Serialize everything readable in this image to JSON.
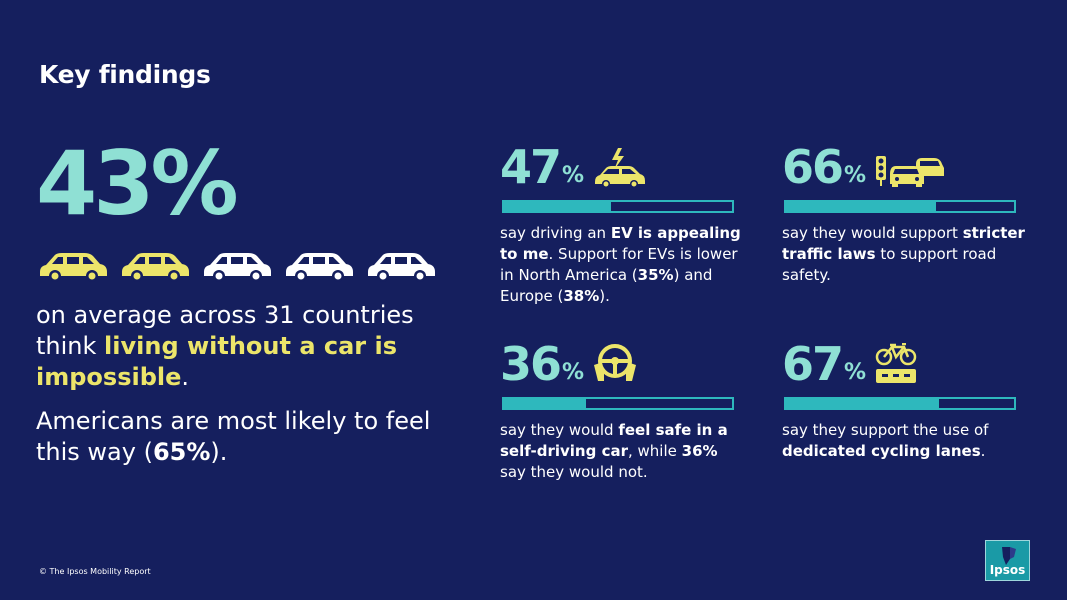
{
  "title": "Key findings",
  "headline": {
    "value": "43%",
    "cars_filled": 2,
    "cars_total": 5,
    "text_pre": "on average across 31 countries think ",
    "text_highlight": "living without a car is impossible",
    "text_post": ".",
    "text2_pre": "Americans are most likely to feel this way (",
    "text2_bold": "65%",
    "text2_post": ")."
  },
  "stats": [
    {
      "number": "47",
      "pct": "%",
      "icon": "ev-car-icon",
      "fill": 0.47,
      "t1": "say driving an ",
      "b1": "EV is appealing to me",
      "t2": ". Support for EVs is lower in North America (",
      "b2": "35%",
      "t3": ") and Europe (",
      "b3": "38%",
      "t4": ")."
    },
    {
      "number": "66",
      "pct": "%",
      "icon": "traffic-light-cars-icon",
      "fill": 0.66,
      "t1": "say they would support ",
      "b1": "stricter traffic laws",
      "t2": " to support road safety.",
      "b2": "",
      "t3": "",
      "b3": "",
      "t4": ""
    },
    {
      "number": "36",
      "pct": "%",
      "icon": "steering-wheel-hands-icon",
      "fill": 0.36,
      "t1": "say they would ",
      "b1": "feel safe in a self-driving car",
      "t2": ", while ",
      "b2": "36%",
      "t3": " say they would not.",
      "b3": "",
      "t4": ""
    },
    {
      "number": "67",
      "pct": "%",
      "icon": "bicycle-lane-icon",
      "fill": 0.67,
      "t1": "say they support the use of ",
      "b1": "dedicated cycling lanes",
      "t2": ".",
      "b2": "",
      "t3": "",
      "b3": "",
      "t4": ""
    }
  ],
  "footer": "© The Ipsos Mobility Report",
  "logo_text": "Ipsos",
  "colors": {
    "background": "#151f5e",
    "accent_teal": "#8fe0d4",
    "bar_teal": "#2eb8bd",
    "highlight_yellow": "#ece56a"
  }
}
